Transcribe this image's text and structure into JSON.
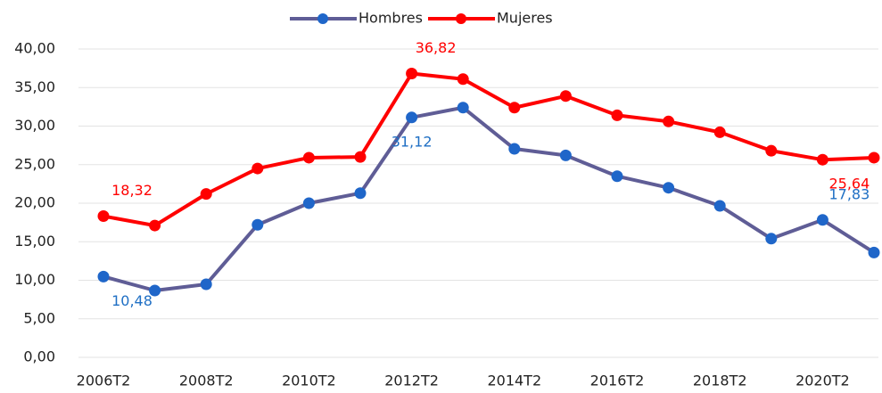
{
  "chart_data": {
    "type": "line",
    "categories": [
      "2006T2",
      null,
      "2008T2",
      null,
      "2010T2",
      null,
      "2012T2",
      null,
      "2014T2",
      null,
      "2016T2",
      null,
      "2018T2",
      null,
      "2020T2",
      null
    ],
    "series": [
      {
        "name": "Hombres",
        "color": "#5f5d96",
        "marker_color": "#1f66c9",
        "label_color": "#1f6fc4",
        "values": [
          10.48,
          8.67,
          9.48,
          17.2,
          20.0,
          21.3,
          31.12,
          32.4,
          27.05,
          26.2,
          23.5,
          22.0,
          19.65,
          15.4,
          17.83,
          13.6
        ],
        "value_labels": [
          "10,48",
          null,
          null,
          null,
          null,
          null,
          "31,12",
          null,
          null,
          null,
          null,
          null,
          null,
          null,
          "17,83",
          null
        ]
      },
      {
        "name": "Mujeres",
        "color": "#ff0000",
        "marker_color": "#ff0000",
        "label_color": "#ff0000",
        "values": [
          18.32,
          17.1,
          21.2,
          24.5,
          25.9,
          26.0,
          36.82,
          36.1,
          32.4,
          33.9,
          31.4,
          30.6,
          29.2,
          26.8,
          25.64,
          25.9
        ],
        "value_labels": [
          "18,32",
          null,
          null,
          null,
          null,
          null,
          "36,82",
          null,
          null,
          null,
          null,
          null,
          null,
          null,
          "25,64",
          null
        ]
      }
    ],
    "ylim": [
      0,
      40
    ],
    "yticks": [
      {
        "value": 0,
        "label": "0,00"
      },
      {
        "value": 5,
        "label": "5,00"
      },
      {
        "value": 10,
        "label": "10,00"
      },
      {
        "value": 15,
        "label": "15,00"
      },
      {
        "value": 20,
        "label": "20,00"
      },
      {
        "value": 25,
        "label": "25,00"
      },
      {
        "value": 30,
        "label": "30,00"
      },
      {
        "value": 35,
        "label": "35,00"
      },
      {
        "value": 40,
        "label": "40,00"
      }
    ],
    "grid": true,
    "legend": "top"
  }
}
